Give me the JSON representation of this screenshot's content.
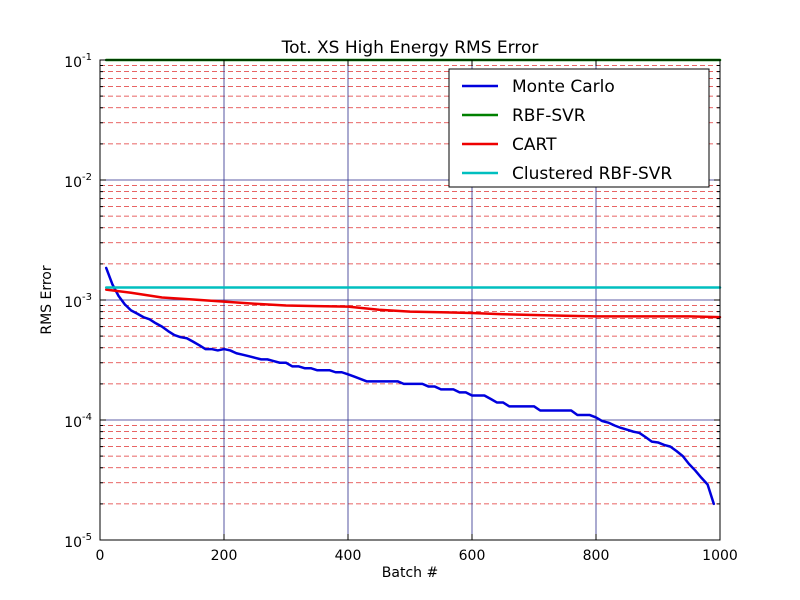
{
  "chart_data": {
    "type": "line",
    "title": "Tot. XS High Energy RMS Error",
    "xlabel": "Batch #",
    "ylabel": "RMS Error",
    "xlim": [
      0,
      1000
    ],
    "ylim": [
      1e-05,
      0.1
    ],
    "yscale": "log",
    "grid": true,
    "legend_position": "top-right",
    "x_ticks": [
      "0",
      "200",
      "400",
      "600",
      "800",
      "1000"
    ],
    "y_ticks": [
      {
        "base": "10",
        "exp": "-5",
        "value": 1e-05
      },
      {
        "base": "10",
        "exp": "-4",
        "value": 0.0001
      },
      {
        "base": "10",
        "exp": "-3",
        "value": 0.001
      },
      {
        "base": "10",
        "exp": "-2",
        "value": 0.01
      },
      {
        "base": "10",
        "exp": "-1",
        "value": 0.1
      }
    ],
    "colors": {
      "major_grid": "#2a2a8a",
      "minor_grid": "#e03030"
    },
    "series": [
      {
        "name": "Monte Carlo",
        "color": "#0000dd",
        "x": [
          10,
          20,
          30,
          40,
          50,
          60,
          70,
          80,
          90,
          100,
          110,
          120,
          130,
          140,
          150,
          160,
          170,
          180,
          190,
          200,
          210,
          220,
          230,
          240,
          250,
          260,
          270,
          280,
          290,
          300,
          310,
          320,
          330,
          340,
          350,
          360,
          370,
          380,
          390,
          400,
          410,
          420,
          430,
          440,
          450,
          460,
          470,
          480,
          490,
          500,
          510,
          520,
          530,
          540,
          550,
          560,
          570,
          580,
          590,
          600,
          610,
          620,
          630,
          640,
          650,
          660,
          670,
          680,
          690,
          700,
          710,
          720,
          730,
          740,
          750,
          760,
          770,
          780,
          790,
          800,
          810,
          820,
          830,
          840,
          850,
          860,
          870,
          880,
          890,
          900,
          910,
          920,
          930,
          940,
          950,
          960,
          970,
          980,
          990
        ],
        "values": [
          0.00185,
          0.00135,
          0.00108,
          0.00092,
          0.00082,
          0.00077,
          0.00072,
          0.00069,
          0.00064,
          0.0006,
          0.00055,
          0.00051,
          0.00049,
          0.00048,
          0.00045,
          0.00042,
          0.00039,
          0.00039,
          0.00038,
          0.00039,
          0.00038,
          0.00036,
          0.00035,
          0.00034,
          0.00033,
          0.00032,
          0.00032,
          0.00031,
          0.0003,
          0.0003,
          0.00028,
          0.00028,
          0.00027,
          0.00027,
          0.00026,
          0.00026,
          0.00026,
          0.00025,
          0.00025,
          0.00024,
          0.00023,
          0.00022,
          0.00021,
          0.00021,
          0.00021,
          0.00021,
          0.00021,
          0.00021,
          0.0002,
          0.0002,
          0.0002,
          0.0002,
          0.00019,
          0.00019,
          0.00018,
          0.00018,
          0.00018,
          0.00017,
          0.00017,
          0.00016,
          0.00016,
          0.00016,
          0.00015,
          0.00014,
          0.00014,
          0.00013,
          0.00013,
          0.00013,
          0.00013,
          0.00013,
          0.00012,
          0.00012,
          0.00012,
          0.00012,
          0.00012,
          0.00012,
          0.00011,
          0.00011,
          0.00011,
          0.000105,
          9.8e-05,
          9.5e-05,
          9e-05,
          8.6e-05,
          8.3e-05,
          8e-05,
          7.8e-05,
          7.2e-05,
          6.6e-05,
          6.5e-05,
          6.2e-05,
          6e-05,
          5.5e-05,
          5e-05,
          4.3e-05,
          3.8e-05,
          3.3e-05,
          2.9e-05,
          2e-05
        ]
      },
      {
        "name": "RBF-SVR",
        "color": "#008000",
        "x": [
          10,
          1000
        ],
        "values": [
          0.1,
          0.1
        ]
      },
      {
        "name": "CART",
        "color": "#ee0000",
        "x": [
          10,
          50,
          100,
          150,
          200,
          250,
          300,
          350,
          400,
          450,
          500,
          550,
          600,
          650,
          700,
          750,
          800,
          850,
          900,
          950,
          1000
        ],
        "values": [
          0.00122,
          0.00115,
          0.00105,
          0.00101,
          0.00097,
          0.00093,
          0.0009,
          0.00089,
          0.00088,
          0.00083,
          0.0008,
          0.00079,
          0.00078,
          0.00076,
          0.00075,
          0.00074,
          0.00073,
          0.00073,
          0.00073,
          0.00073,
          0.00072
        ]
      },
      {
        "name": "Clustered RBF-SVR",
        "color": "#00bfbf",
        "x": [
          10,
          1000
        ],
        "values": [
          0.00127,
          0.00127
        ]
      }
    ]
  }
}
